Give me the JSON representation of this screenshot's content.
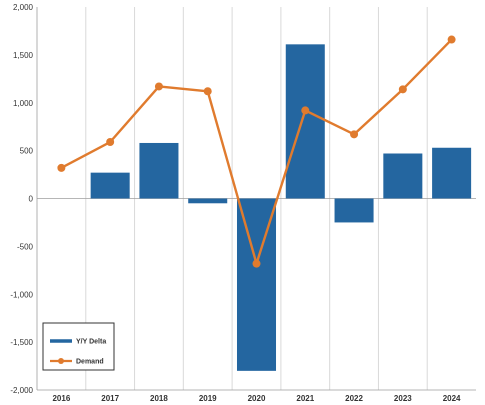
{
  "chart_data": {
    "type": "bar",
    "categories": [
      "2016",
      "2017",
      "2018",
      "2019",
      "2020",
      "2021",
      "2022",
      "2023",
      "2024"
    ],
    "series": [
      {
        "name": "Y/Y Delta",
        "type": "bar",
        "color": "#2466a0",
        "values": [
          0,
          270,
          580,
          -50,
          -1800,
          1610,
          -250,
          470,
          530
        ]
      },
      {
        "name": "Demand",
        "type": "line",
        "color": "#e07b2e",
        "values": [
          320,
          590,
          1170,
          1120,
          -680,
          920,
          670,
          1140,
          1660
        ]
      }
    ],
    "y_ticks": [
      "2,000",
      "1,500",
      "1,000",
      "500",
      "0",
      "-500",
      "-1,000",
      "-1,500",
      "-2,000"
    ],
    "ylim": [
      -2000,
      2000
    ],
    "grid": "vertical",
    "legend_position": "bottom-left"
  }
}
